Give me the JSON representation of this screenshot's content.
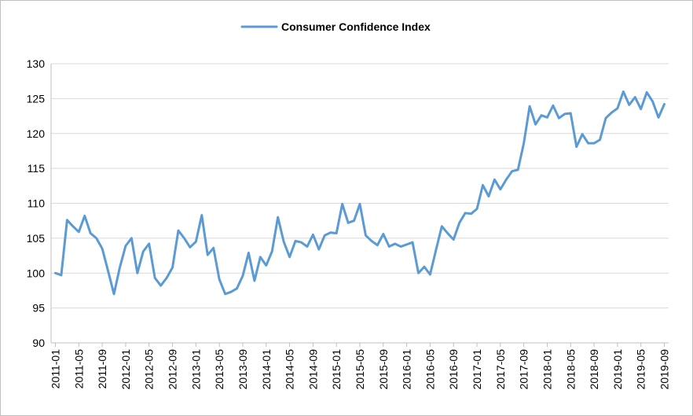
{
  "chart_data": {
    "type": "line",
    "title": "",
    "xlabel": "",
    "ylabel": "",
    "ylim": [
      90,
      130
    ],
    "yticks": [
      90,
      95,
      100,
      105,
      110,
      115,
      120,
      125,
      130
    ],
    "grid": true,
    "legend_position": "top",
    "x_tick_labels": [
      "2011-01",
      "2011-05",
      "2011-09",
      "2012-01",
      "2012-05",
      "2012-09",
      "2013-01",
      "2013-05",
      "2013-09",
      "2014-01",
      "2014-05",
      "2014-09",
      "2015-01",
      "2015-05",
      "2015-09",
      "2016-01",
      "2016-05",
      "2016-09",
      "2017-01",
      "2017-05",
      "2017-09",
      "2018-01",
      "2018-05",
      "2018-09",
      "2019-01",
      "2019-05",
      "2019-09"
    ],
    "x": [
      "2011-01",
      "2011-02",
      "2011-03",
      "2011-04",
      "2011-05",
      "2011-06",
      "2011-07",
      "2011-08",
      "2011-09",
      "2011-10",
      "2011-11",
      "2011-12",
      "2012-01",
      "2012-02",
      "2012-03",
      "2012-04",
      "2012-05",
      "2012-06",
      "2012-07",
      "2012-08",
      "2012-09",
      "2012-10",
      "2012-11",
      "2012-12",
      "2013-01",
      "2013-02",
      "2013-03",
      "2013-04",
      "2013-05",
      "2013-06",
      "2013-07",
      "2013-08",
      "2013-09",
      "2013-10",
      "2013-11",
      "2013-12",
      "2014-01",
      "2014-02",
      "2014-03",
      "2014-04",
      "2014-05",
      "2014-06",
      "2014-07",
      "2014-08",
      "2014-09",
      "2014-10",
      "2014-11",
      "2014-12",
      "2015-01",
      "2015-02",
      "2015-03",
      "2015-04",
      "2015-05",
      "2015-06",
      "2015-07",
      "2015-08",
      "2015-09",
      "2015-10",
      "2015-11",
      "2015-12",
      "2016-01",
      "2016-02",
      "2016-03",
      "2016-04",
      "2016-05",
      "2016-06",
      "2016-07",
      "2016-08",
      "2016-09",
      "2016-10",
      "2016-11",
      "2016-12",
      "2017-01",
      "2017-02",
      "2017-03",
      "2017-04",
      "2017-05",
      "2017-06",
      "2017-07",
      "2017-08",
      "2017-09",
      "2017-10",
      "2017-11",
      "2017-12",
      "2018-01",
      "2018-02",
      "2018-03",
      "2018-04",
      "2018-05",
      "2018-06",
      "2018-07",
      "2018-08",
      "2018-09",
      "2018-10",
      "2018-11",
      "2018-12",
      "2019-01",
      "2019-02",
      "2019-03",
      "2019-04",
      "2019-05",
      "2019-06",
      "2019-07",
      "2019-08",
      "2019-09"
    ],
    "series": [
      {
        "name": "Consumer Confidence Index",
        "color": "#5b9bd5",
        "values": [
          100.0,
          99.7,
          107.6,
          106.7,
          105.9,
          108.2,
          105.7,
          105.0,
          103.5,
          100.3,
          97.0,
          100.8,
          103.9,
          105.0,
          100.0,
          103.1,
          104.2,
          99.3,
          98.2,
          99.3,
          100.8,
          106.1,
          105.0,
          103.7,
          104.5,
          108.3,
          102.6,
          103.6,
          99.1,
          97.0,
          97.3,
          97.8,
          99.6,
          102.9,
          98.9,
          102.3,
          101.1,
          103.1,
          108.0,
          104.5,
          102.3,
          104.6,
          104.4,
          103.8,
          105.5,
          103.4,
          105.4,
          105.8,
          105.7,
          109.9,
          107.2,
          107.5,
          109.9,
          105.4,
          104.6,
          104.0,
          105.6,
          103.8,
          104.2,
          103.8,
          104.1,
          104.4,
          100.0,
          100.9,
          99.8,
          103.3,
          106.7,
          105.7,
          104.8,
          107.2,
          108.6,
          108.5,
          109.2,
          112.6,
          111.0,
          113.4,
          112.0,
          113.4,
          114.6,
          114.8,
          118.6,
          123.9,
          121.3,
          122.6,
          122.3,
          124.0,
          122.2,
          122.8,
          122.9,
          118.1,
          119.9,
          118.6,
          118.6,
          119.1,
          122.2,
          123.0,
          123.6,
          126.0,
          124.1,
          125.2,
          123.5,
          125.9,
          124.6,
          122.3,
          124.2
        ]
      }
    ]
  }
}
